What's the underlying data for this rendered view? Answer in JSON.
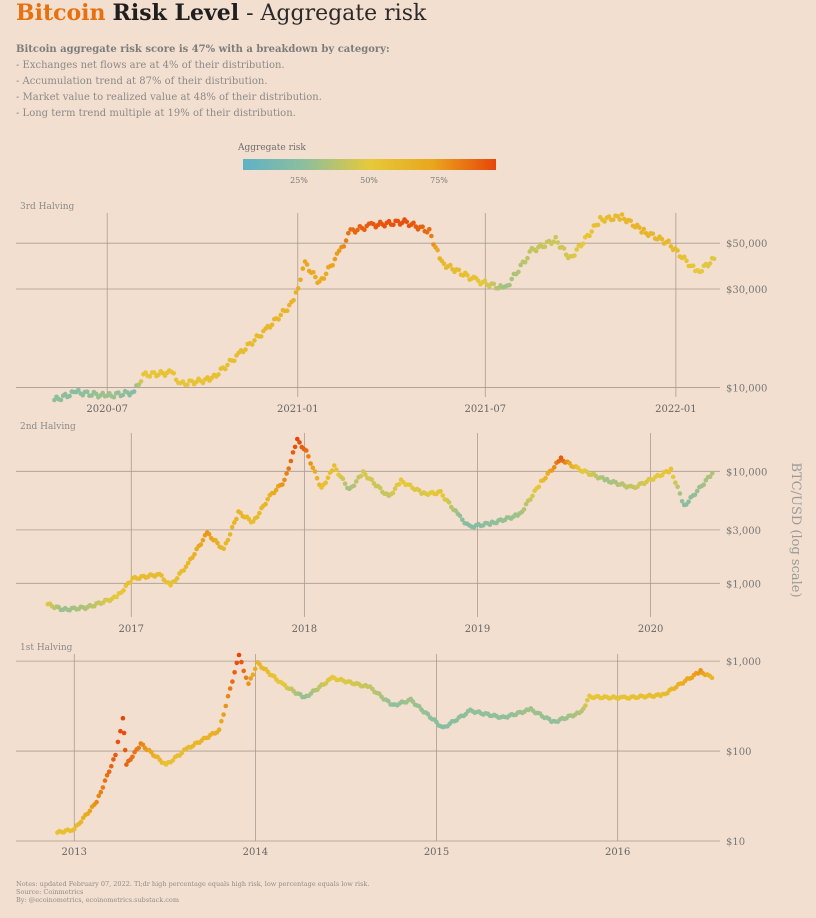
{
  "title": {
    "brand": "Bitcoin",
    "strong": "Risk Level",
    "rest": " - Aggregate risk"
  },
  "summary": {
    "lead": "Bitcoin aggregate risk score is 47% with a breakdown by category:",
    "lines": [
      "- Exchanges net flows are at 4% of their distribution.",
      "- Accumulation trend at 87% of their distribution.",
      "- Market value to realized value at 48% of their distribution.",
      "- Long term trend multiple at 19% of their distribution."
    ]
  },
  "legend": {
    "title": "Aggregate risk",
    "ticks": [
      "25%",
      "50%",
      "75%"
    ],
    "colors": [
      "#5fb1c7",
      "#8fbf9b",
      "#e6c93a",
      "#e9a61d",
      "#e8450a"
    ]
  },
  "y_axis_label": "BTC/USD (log scale)",
  "notes": [
    "Notes: updated February 07, 2022. Tl;dr high percentage equals high risk, low percentage equals low risk.",
    "Source: Coinmetrics",
    "By: @ecoinometrics, ecoinometrics.substack.com"
  ],
  "chart_data": [
    {
      "type": "scatter",
      "panel_label": "3rd Halving",
      "x_ticks": [
        "2020-07",
        "2021-01",
        "2021-07",
        "2022-01"
      ],
      "y_ticks": [
        "$10,000",
        "$30,000",
        "$50,000"
      ],
      "y_tick_values": [
        10000,
        30000,
        50000
      ],
      "xlim": [
        "2020-05",
        "2022-02"
      ],
      "ylim": [
        9000,
        70000
      ],
      "y_scale": "log",
      "grid": true,
      "points": [
        {
          "date": "2020-05-11",
          "price": 8700,
          "risk": 0.25
        },
        {
          "date": "2020-06-01",
          "price": 9500,
          "risk": 0.22
        },
        {
          "date": "2020-07-01",
          "price": 9100,
          "risk": 0.3
        },
        {
          "date": "2020-07-27",
          "price": 9500,
          "risk": 0.2
        },
        {
          "date": "2020-08-05",
          "price": 11500,
          "risk": 0.52
        },
        {
          "date": "2020-09-01",
          "price": 11800,
          "risk": 0.55
        },
        {
          "date": "2020-09-10",
          "price": 10400,
          "risk": 0.52
        },
        {
          "date": "2020-10-10",
          "price": 11000,
          "risk": 0.56
        },
        {
          "date": "2020-11-05",
          "price": 14500,
          "risk": 0.58
        },
        {
          "date": "2020-12-01",
          "price": 19000,
          "risk": 0.62
        },
        {
          "date": "2020-12-28",
          "price": 26000,
          "risk": 0.66
        },
        {
          "date": "2021-01-08",
          "price": 40000,
          "risk": 0.75
        },
        {
          "date": "2021-01-22",
          "price": 32000,
          "risk": 0.7
        },
        {
          "date": "2021-02-10",
          "price": 45000,
          "risk": 0.78
        },
        {
          "date": "2021-02-21",
          "price": 57000,
          "risk": 0.9
        },
        {
          "date": "2021-03-13",
          "price": 61000,
          "risk": 0.95
        },
        {
          "date": "2021-04-14",
          "price": 63500,
          "risk": 0.98
        },
        {
          "date": "2021-05-08",
          "price": 57000,
          "risk": 0.9
        },
        {
          "date": "2021-05-20",
          "price": 40000,
          "risk": 0.62
        },
        {
          "date": "2021-06-22",
          "price": 33000,
          "risk": 0.55
        },
        {
          "date": "2021-07-20",
          "price": 30000,
          "risk": 0.3
        },
        {
          "date": "2021-08-15",
          "price": 46000,
          "risk": 0.4
        },
        {
          "date": "2021-09-07",
          "price": 52000,
          "risk": 0.42
        },
        {
          "date": "2021-09-21",
          "price": 42000,
          "risk": 0.45
        },
        {
          "date": "2021-10-20",
          "price": 65000,
          "risk": 0.58
        },
        {
          "date": "2021-11-10",
          "price": 67000,
          "risk": 0.62
        },
        {
          "date": "2021-12-01",
          "price": 57000,
          "risk": 0.65
        },
        {
          "date": "2021-12-25",
          "price": 50000,
          "risk": 0.62
        },
        {
          "date": "2022-01-22",
          "price": 36000,
          "risk": 0.5
        },
        {
          "date": "2022-02-07",
          "price": 42000,
          "risk": 0.47
        }
      ]
    },
    {
      "type": "scatter",
      "panel_label": "2nd Halving",
      "x_ticks": [
        "2017",
        "2018",
        "2019",
        "2020"
      ],
      "y_ticks": [
        "$1,000",
        "$3,000",
        "$10,000"
      ],
      "y_tick_values": [
        1000,
        3000,
        10000
      ],
      "xlim": [
        "2016-07",
        "2020-05"
      ],
      "ylim": [
        500,
        22000
      ],
      "y_scale": "log",
      "grid": true,
      "points": [
        {
          "date": "2016-07-09",
          "price": 650,
          "risk": 0.48
        },
        {
          "date": "2016-08-10",
          "price": 580,
          "risk": 0.28
        },
        {
          "date": "2016-10-01",
          "price": 610,
          "risk": 0.35
        },
        {
          "date": "2016-12-01",
          "price": 750,
          "risk": 0.5
        },
        {
          "date": "2017-01-04",
          "price": 1100,
          "risk": 0.58
        },
        {
          "date": "2017-03-01",
          "price": 1200,
          "risk": 0.6
        },
        {
          "date": "2017-03-25",
          "price": 950,
          "risk": 0.55
        },
        {
          "date": "2017-05-01",
          "price": 1500,
          "risk": 0.62
        },
        {
          "date": "2017-06-10",
          "price": 2800,
          "risk": 0.8
        },
        {
          "date": "2017-07-15",
          "price": 2000,
          "risk": 0.62
        },
        {
          "date": "2017-08-15",
          "price": 4300,
          "risk": 0.66
        },
        {
          "date": "2017-09-15",
          "price": 3500,
          "risk": 0.58
        },
        {
          "date": "2017-10-20",
          "price": 6000,
          "risk": 0.66
        },
        {
          "date": "2017-11-20",
          "price": 8200,
          "risk": 0.82
        },
        {
          "date": "2017-12-17",
          "price": 19000,
          "risk": 1.0
        },
        {
          "date": "2018-01-05",
          "price": 15000,
          "risk": 0.9
        },
        {
          "date": "2018-02-06",
          "price": 7000,
          "risk": 0.56
        },
        {
          "date": "2018-03-05",
          "price": 11000,
          "risk": 0.58
        },
        {
          "date": "2018-04-06",
          "price": 6800,
          "risk": 0.3
        },
        {
          "date": "2018-05-05",
          "price": 9700,
          "risk": 0.45
        },
        {
          "date": "2018-06-28",
          "price": 5900,
          "risk": 0.4
        },
        {
          "date": "2018-07-24",
          "price": 8200,
          "risk": 0.52
        },
        {
          "date": "2018-09-10",
          "price": 6300,
          "risk": 0.45
        },
        {
          "date": "2018-10-15",
          "price": 6450,
          "risk": 0.55
        },
        {
          "date": "2018-11-25",
          "price": 3900,
          "risk": 0.25
        },
        {
          "date": "2018-12-15",
          "price": 3200,
          "risk": 0.2
        },
        {
          "date": "2019-02-01",
          "price": 3450,
          "risk": 0.25
        },
        {
          "date": "2019-03-31",
          "price": 4100,
          "risk": 0.3
        },
        {
          "date": "2019-05-15",
          "price": 8000,
          "risk": 0.55
        },
        {
          "date": "2019-06-26",
          "price": 12900,
          "risk": 0.95
        },
        {
          "date": "2019-08-01",
          "price": 10500,
          "risk": 0.55
        },
        {
          "date": "2019-10-01",
          "price": 8300,
          "risk": 0.3
        },
        {
          "date": "2019-11-25",
          "price": 7100,
          "risk": 0.4
        },
        {
          "date": "2020-02-13",
          "price": 10300,
          "risk": 0.55
        },
        {
          "date": "2020-03-12",
          "price": 4900,
          "risk": 0.2
        },
        {
          "date": "2020-05-10",
          "price": 9600,
          "risk": 0.35
        }
      ]
    },
    {
      "type": "scatter",
      "panel_label": "1st Halving",
      "x_ticks": [
        "2013",
        "2014",
        "2015",
        "2016"
      ],
      "y_ticks": [
        "$10",
        "$100",
        "$1,000"
      ],
      "y_tick_values": [
        10,
        100,
        1000
      ],
      "xlim": [
        "2012-11",
        "2016-07"
      ],
      "ylim": [
        10,
        1200
      ],
      "y_scale": "log",
      "grid": true,
      "points": [
        {
          "date": "2012-11-28",
          "price": 12.4,
          "risk": 0.55
        },
        {
          "date": "2013-01-01",
          "price": 13.5,
          "risk": 0.58
        },
        {
          "date": "2013-02-15",
          "price": 27,
          "risk": 0.82
        },
        {
          "date": "2013-03-25",
          "price": 90,
          "risk": 0.95
        },
        {
          "date": "2013-04-09",
          "price": 230,
          "risk": 1.0
        },
        {
          "date": "2013-04-16",
          "price": 70,
          "risk": 0.92
        },
        {
          "date": "2013-05-15",
          "price": 120,
          "risk": 0.85
        },
        {
          "date": "2013-07-05",
          "price": 70,
          "risk": 0.55
        },
        {
          "date": "2013-08-15",
          "price": 105,
          "risk": 0.6
        },
        {
          "date": "2013-10-20",
          "price": 170,
          "risk": 0.7
        },
        {
          "date": "2013-11-29",
          "price": 1150,
          "risk": 1.0
        },
        {
          "date": "2013-12-18",
          "price": 550,
          "risk": 0.8
        },
        {
          "date": "2014-01-05",
          "price": 950,
          "risk": 0.65
        },
        {
          "date": "2014-02-25",
          "price": 550,
          "risk": 0.5
        },
        {
          "date": "2014-04-10",
          "price": 390,
          "risk": 0.25
        },
        {
          "date": "2014-06-05",
          "price": 650,
          "risk": 0.5
        },
        {
          "date": "2014-08-20",
          "price": 510,
          "risk": 0.4
        },
        {
          "date": "2014-10-05",
          "price": 320,
          "risk": 0.25
        },
        {
          "date": "2014-11-10",
          "price": 370,
          "risk": 0.3
        },
        {
          "date": "2015-01-14",
          "price": 180,
          "risk": 0.22
        },
        {
          "date": "2015-03-10",
          "price": 280,
          "risk": 0.25
        },
        {
          "date": "2015-05-15",
          "price": 235,
          "risk": 0.25
        },
        {
          "date": "2015-07-10",
          "price": 290,
          "risk": 0.3
        },
        {
          "date": "2015-08-25",
          "price": 210,
          "risk": 0.25
        },
        {
          "date": "2015-10-20",
          "price": 270,
          "risk": 0.35
        },
        {
          "date": "2015-11-05",
          "price": 400,
          "risk": 0.52
        },
        {
          "date": "2016-01-15",
          "price": 390,
          "risk": 0.55
        },
        {
          "date": "2016-04-01",
          "price": 420,
          "risk": 0.58
        },
        {
          "date": "2016-06-16",
          "price": 770,
          "risk": 0.8
        },
        {
          "date": "2016-07-09",
          "price": 650,
          "risk": 0.62
        }
      ]
    }
  ]
}
